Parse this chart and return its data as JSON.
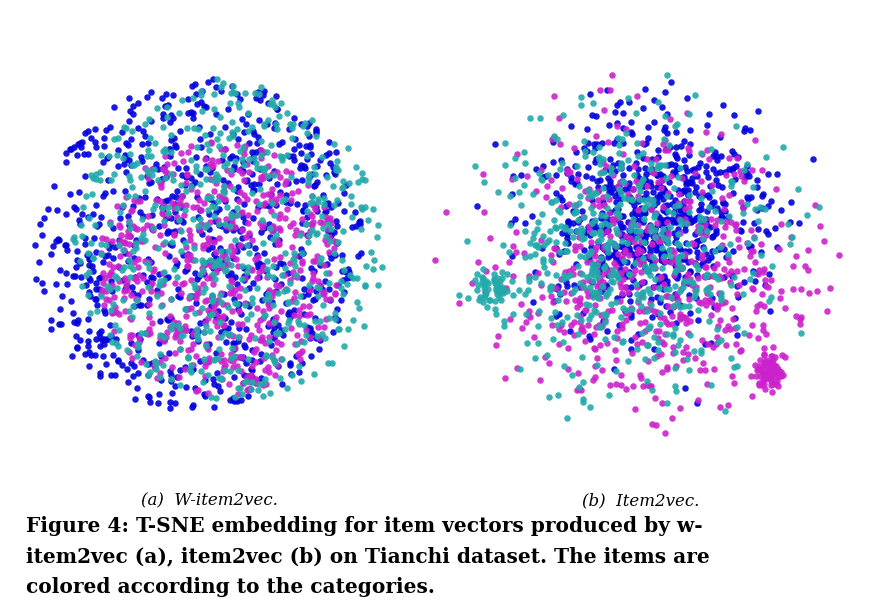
{
  "subtitle_a": "(a)  W-item2vec.",
  "subtitle_b": "(b)  Item2vec.",
  "colors": [
    "#0000DD",
    "#CC22CC",
    "#22AAAA"
  ],
  "n_points": 2000,
  "seed": 42,
  "background_color": "#ffffff",
  "figsize": [
    8.72,
    6.04
  ],
  "dpi": 100,
  "marker_size": 22,
  "alpha": 0.9,
  "caption_line1": "Figure 4: T-SNE embedding for item vectors produced by w-",
  "caption_line2": "item2vec (a), item2vec (b) on Tianchi dataset. The items are",
  "caption_line3": "colored according to the categories.",
  "caption_fontsize": 14.5,
  "subcap_fontsize": 12
}
